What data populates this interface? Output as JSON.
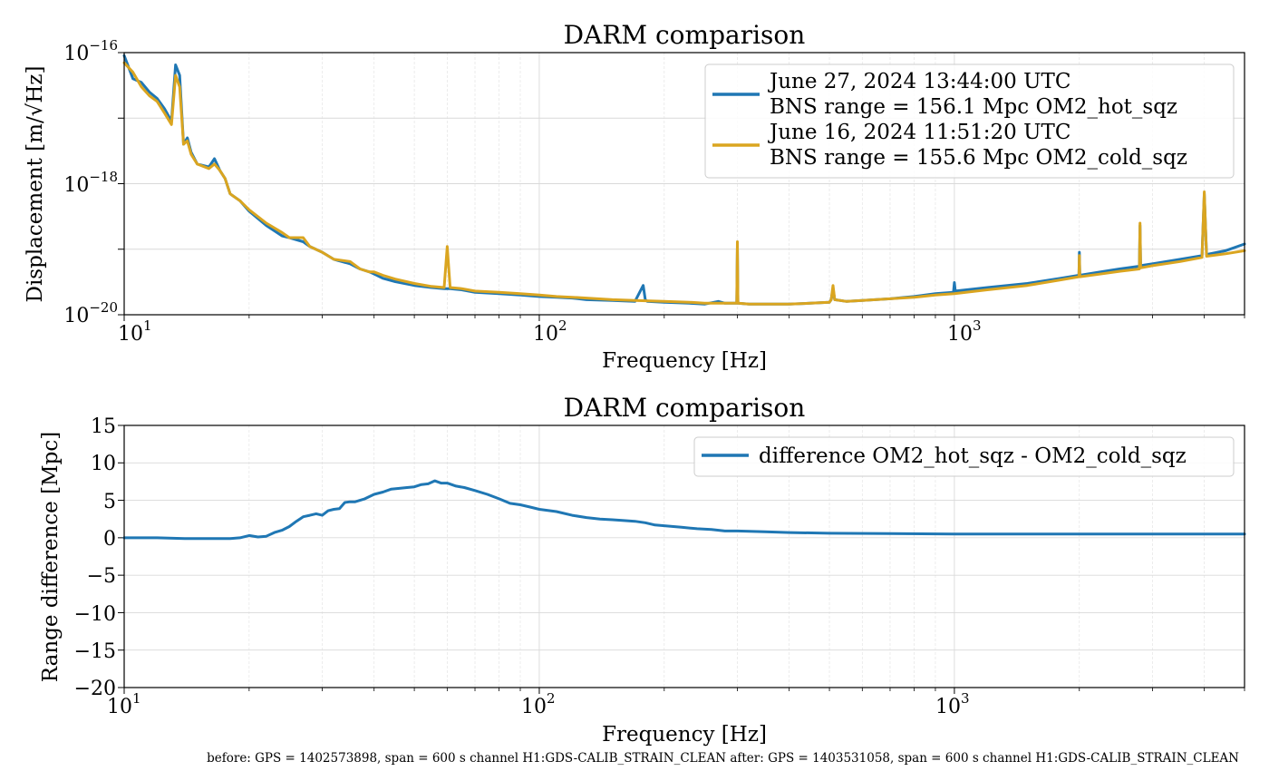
{
  "footer": "before: GPS = 1402573898, span = 600 s channel H1:GDS-CALIB_STRAIN_CLEAN after: GPS = 1403531058, span = 600 s channel H1:GDS-CALIB_STRAIN_CLEAN",
  "chart_data": [
    {
      "type": "line",
      "title": "DARM comparison",
      "xlabel": "Frequency [Hz]",
      "ylabel": "Displacement [m/√Hz]",
      "xscale": "log",
      "yscale": "log",
      "xlim": [
        10,
        5000
      ],
      "ylim": [
        1e-20,
        1e-16
      ],
      "x_ticks": [
        {
          "base": "10",
          "exp": "1"
        },
        {
          "base": "10",
          "exp": "2"
        },
        {
          "base": "10",
          "exp": "3"
        }
      ],
      "y_ticks": [
        {
          "base": "10",
          "exp": "−16"
        },
        {
          "base": "10",
          "exp": "−18"
        },
        {
          "base": "10",
          "exp": "−20"
        }
      ],
      "grid": true,
      "legend_position": "top-right",
      "series": [
        {
          "name": "June 27, 2024 13:44:00 UTC\nBNS range = 156.1 Mpc OM2_hot_sqz",
          "legend_lines": [
            "June 27, 2024 13:44:00 UTC",
            "BNS range = 156.1 Mpc OM2_hot_sqz"
          ],
          "color": "#1f77b4",
          "x": [
            10,
            10.5,
            11,
            11.5,
            12,
            12.5,
            13,
            13.3,
            13.6,
            13.9,
            14.2,
            14.5,
            15,
            16,
            16.5,
            17,
            17.5,
            18,
            19,
            20,
            22,
            24,
            25,
            27,
            28,
            30,
            32,
            35,
            37,
            39,
            40,
            42,
            45,
            50,
            55,
            59,
            60,
            61,
            65,
            70,
            80,
            90,
            100,
            110,
            120,
            130,
            150,
            170,
            178,
            180,
            182,
            200,
            230,
            250,
            270,
            280,
            290,
            299,
            300,
            301,
            320,
            350,
            400,
            450,
            500,
            505,
            510,
            515,
            550,
            600,
            700,
            800,
            900,
            995,
            1000,
            1005,
            1200,
            1500,
            1800,
            1995,
            2000,
            2005,
            2200,
            2500,
            2790,
            2800,
            2810,
            3000,
            3500,
            3950,
            4000,
            4050,
            4500,
            5000
          ],
          "y": [
            9e-17,
            4e-17,
            3.5e-17,
            2.5e-17,
            2e-17,
            1.4e-17,
            9e-18,
            6.5e-17,
            4.5e-17,
            4e-18,
            5e-18,
            3e-18,
            2e-18,
            1.8e-18,
            2.4e-18,
            1.6e-18,
            1.2e-18,
            7e-19,
            5.5e-19,
            3.8e-19,
            2.3e-19,
            1.6e-19,
            1.5e-19,
            1.3e-19,
            1.1e-19,
            9e-20,
            7e-20,
            6e-20,
            5e-20,
            4.5e-20,
            4.2e-20,
            3.6e-20,
            3.2e-20,
            2.8e-20,
            2.6e-20,
            2.5e-20,
            2.5e-20,
            2.5e-20,
            2.4e-20,
            2.2e-20,
            2.1e-20,
            2e-20,
            1.9e-20,
            1.85e-20,
            1.8e-20,
            1.7e-20,
            1.65e-20,
            1.6e-20,
            2.8e-20,
            1.7e-20,
            1.6e-20,
            1.55e-20,
            1.5e-20,
            1.45e-20,
            1.6e-20,
            1.5e-20,
            1.5e-20,
            1.5e-20,
            1.1e-19,
            1.5e-20,
            1.45e-20,
            1.45e-20,
            1.45e-20,
            1.5e-20,
            1.55e-20,
            1.7e-20,
            2.5e-20,
            1.7e-20,
            1.6e-20,
            1.65e-20,
            1.75e-20,
            1.9e-20,
            2.1e-20,
            2.2e-20,
            3.1e-20,
            2.3e-20,
            2.6e-20,
            3e-20,
            3.6e-20,
            4e-20,
            9e-20,
            4e-20,
            4.4e-20,
            5e-20,
            5.5e-20,
            2.3e-19,
            5.6e-20,
            6e-20,
            7e-20,
            8e-20,
            7e-19,
            8.3e-20,
            9.5e-20,
            1.2e-19
          ]
        },
        {
          "name": "June 16, 2024 11:51:20 UTC\nBNS range = 155.6 Mpc OM2_cold_sqz",
          "legend_lines": [
            "June 16, 2024 11:51:20 UTC",
            "BNS range = 155.6 Mpc OM2_cold_sqz"
          ],
          "color": "#daa520",
          "x": [
            10,
            10.5,
            11,
            11.5,
            12,
            12.5,
            13,
            13.3,
            13.6,
            13.9,
            14.2,
            14.5,
            15,
            16,
            16.5,
            17,
            17.5,
            18,
            19,
            20,
            22,
            24,
            25,
            27,
            28,
            30,
            32,
            35,
            37,
            39,
            40,
            42,
            45,
            50,
            55,
            59,
            60,
            61,
            65,
            70,
            80,
            90,
            100,
            110,
            120,
            130,
            150,
            170,
            200,
            230,
            250,
            270,
            280,
            290,
            299,
            300,
            301,
            320,
            350,
            400,
            450,
            500,
            505,
            510,
            515,
            550,
            600,
            700,
            800,
            900,
            1000,
            1200,
            1500,
            1800,
            1995,
            2000,
            2005,
            2200,
            2500,
            2790,
            2800,
            2810,
            3000,
            3500,
            3950,
            4000,
            4050,
            4500,
            5000
          ],
          "y": [
            7e-17,
            5e-17,
            3e-17,
            2.2e-17,
            1.8e-17,
            1.2e-17,
            8e-18,
            4.5e-17,
            3e-17,
            4e-18,
            4.5e-18,
            2.8e-18,
            2e-18,
            1.7e-18,
            2e-18,
            1.6e-18,
            1.2e-18,
            7e-19,
            5.5e-19,
            4e-19,
            2.5e-19,
            1.8e-19,
            1.5e-19,
            1.5e-19,
            1.1e-19,
            9e-20,
            7e-20,
            6.5e-20,
            5e-20,
            4.5e-20,
            4.5e-20,
            4e-20,
            3.5e-20,
            3e-20,
            2.7e-20,
            2.6e-20,
            1.1e-19,
            2.6e-20,
            2.5e-20,
            2.3e-20,
            2.2e-20,
            2.1e-20,
            2e-20,
            1.9e-20,
            1.85e-20,
            1.8e-20,
            1.7e-20,
            1.65e-20,
            1.6e-20,
            1.55e-20,
            1.5e-20,
            1.5e-20,
            1.5e-20,
            1.5e-20,
            1.5e-20,
            1.3e-19,
            1.5e-20,
            1.45e-20,
            1.45e-20,
            1.45e-20,
            1.5e-20,
            1.55e-20,
            1.7e-20,
            2.8e-20,
            1.7e-20,
            1.6e-20,
            1.65e-20,
            1.75e-20,
            1.85e-20,
            2e-20,
            2.1e-20,
            2.4e-20,
            2.8e-20,
            3.4e-20,
            3.8e-20,
            8e-20,
            3.8e-20,
            4.1e-20,
            4.6e-20,
            5e-20,
            2.5e-19,
            5.2e-20,
            5.6e-20,
            6.5e-20,
            7.5e-20,
            7.5e-19,
            7.8e-20,
            8.5e-20,
            9.5e-20
          ]
        }
      ]
    },
    {
      "type": "line",
      "title": "DARM comparison",
      "xlabel": "Frequency [Hz]",
      "ylabel": "Range difference [Mpc]",
      "xscale": "log",
      "yscale": "linear",
      "xlim": [
        10,
        5000
      ],
      "ylim": [
        -20,
        15
      ],
      "x_ticks": [
        {
          "base": "10",
          "exp": "1"
        },
        {
          "base": "10",
          "exp": "2"
        },
        {
          "base": "10",
          "exp": "3"
        }
      ],
      "y_ticks": [
        "15",
        "10",
        "5",
        "0",
        "−5",
        "−10",
        "−15",
        "−20"
      ],
      "grid": true,
      "legend_position": "top-right",
      "series": [
        {
          "name": "difference OM2_hot_sqz - OM2_cold_sqz",
          "color": "#1f77b4",
          "x": [
            10,
            12,
            14,
            16,
            18,
            19,
            20,
            21,
            22,
            23,
            24,
            25,
            26,
            27,
            28,
            29,
            30,
            31,
            32,
            33,
            34,
            35,
            36,
            38,
            40,
            42,
            44,
            46,
            48,
            50,
            52,
            54,
            56,
            58,
            60,
            63,
            66,
            70,
            75,
            80,
            85,
            90,
            95,
            100,
            110,
            120,
            130,
            140,
            150,
            160,
            170,
            180,
            190,
            200,
            220,
            240,
            260,
            280,
            300,
            350,
            400,
            500,
            700,
            1000,
            2000,
            5000
          ],
          "y": [
            0,
            0,
            -0.1,
            -0.1,
            -0.1,
            0,
            0.3,
            0.1,
            0.2,
            0.7,
            1,
            1.5,
            2.2,
            2.8,
            3,
            3.2,
            3,
            3.6,
            3.8,
            3.9,
            4.7,
            4.8,
            4.8,
            5.2,
            5.8,
            6.1,
            6.5,
            6.6,
            6.7,
            6.8,
            7.1,
            7.2,
            7.6,
            7.3,
            7.3,
            6.9,
            6.7,
            6.3,
            5.8,
            5.2,
            4.6,
            4.4,
            4.1,
            3.8,
            3.5,
            3,
            2.7,
            2.5,
            2.4,
            2.3,
            2.2,
            2,
            1.7,
            1.6,
            1.4,
            1.2,
            1.1,
            0.9,
            0.9,
            0.8,
            0.7,
            0.6,
            0.55,
            0.5,
            0.5,
            0.5
          ]
        }
      ]
    }
  ]
}
